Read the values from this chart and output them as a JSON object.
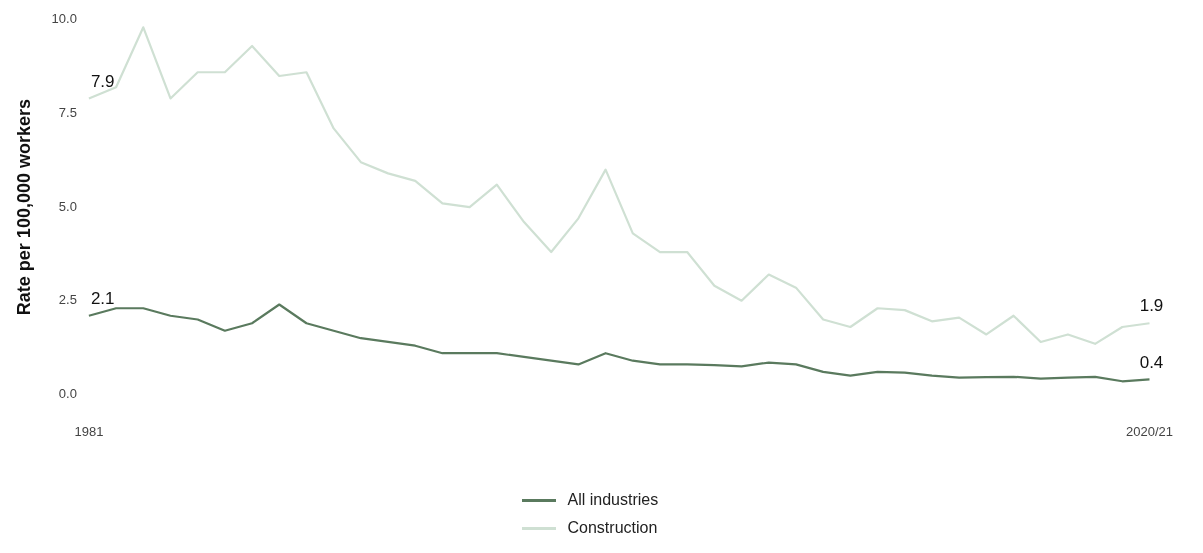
{
  "chart_data": {
    "type": "line",
    "ylabel": "Rate per 100,000 workers",
    "categories": [
      "1981",
      null,
      null,
      null,
      null,
      null,
      null,
      null,
      null,
      null,
      null,
      null,
      null,
      null,
      null,
      null,
      null,
      null,
      null,
      null,
      null,
      null,
      null,
      null,
      null,
      null,
      null,
      null,
      null,
      null,
      null,
      null,
      null,
      null,
      null,
      null,
      null,
      null,
      null,
      "2020/21"
    ],
    "series": [
      {
        "name": "All industries",
        "color": "#5a7a5e",
        "values": [
          2.1,
          2.3,
          2.3,
          2.1,
          2.0,
          1.7,
          1.9,
          2.4,
          1.9,
          1.7,
          1.5,
          1.4,
          1.3,
          1.1,
          1.1,
          1.1,
          1.0,
          0.9,
          0.8,
          1.1,
          0.9,
          0.8,
          0.8,
          0.78,
          0.75,
          0.85,
          0.8,
          0.6,
          0.5,
          0.6,
          0.58,
          0.5,
          0.45,
          0.46,
          0.47,
          0.42,
          0.45,
          0.47,
          0.35,
          0.4
        ],
        "value_labels": [
          "2.1",
          null,
          null,
          null,
          null,
          null,
          null,
          null,
          null,
          null,
          null,
          null,
          null,
          null,
          null,
          null,
          null,
          null,
          null,
          null,
          null,
          null,
          null,
          null,
          null,
          null,
          null,
          null,
          null,
          null,
          null,
          null,
          null,
          null,
          null,
          null,
          null,
          null,
          null,
          "0.4"
        ]
      },
      {
        "name": "Construction",
        "color": "#cfe0d3",
        "values": [
          7.9,
          8.2,
          9.8,
          7.9,
          8.6,
          8.6,
          9.3,
          8.5,
          8.6,
          7.1,
          6.2,
          5.9,
          5.7,
          5.1,
          5.0,
          5.6,
          4.6,
          3.8,
          4.7,
          6.0,
          4.3,
          3.8,
          3.8,
          2.9,
          2.5,
          3.2,
          2.85,
          2.0,
          1.8,
          2.3,
          2.25,
          1.95,
          2.05,
          1.6,
          2.1,
          1.4,
          1.6,
          1.35,
          1.8,
          1.9
        ],
        "value_labels": [
          "7.9",
          null,
          null,
          null,
          null,
          null,
          null,
          null,
          null,
          null,
          null,
          null,
          null,
          null,
          null,
          null,
          null,
          null,
          null,
          null,
          null,
          null,
          null,
          null,
          null,
          null,
          null,
          null,
          null,
          null,
          null,
          null,
          null,
          null,
          null,
          null,
          null,
          null,
          null,
          "1.9"
        ]
      }
    ],
    "ylim": [
      0,
      10
    ],
    "yticks": [
      {
        "value": 0,
        "label": "0.0"
      },
      {
        "value": 2.5,
        "label": "2.5"
      },
      {
        "value": 5,
        "label": "5.0"
      },
      {
        "value": 7.5,
        "label": "7.5"
      },
      {
        "value": 10,
        "label": "10.0"
      }
    ],
    "grid": false,
    "legend": "bottom",
    "marker": "none",
    "line_style": "solid"
  }
}
